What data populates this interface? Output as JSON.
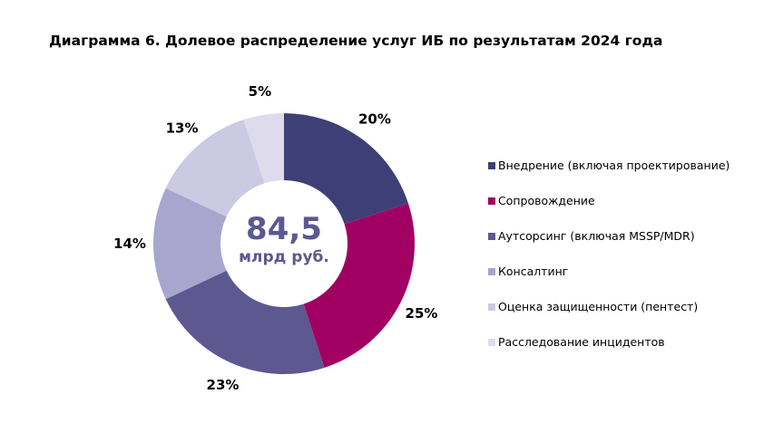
{
  "chart_data": {
    "type": "pie",
    "donut": true,
    "title": "Диаграмма 6. Долевое распределение услуг ИБ по результатам 2024 года",
    "center_value": "84,5",
    "center_unit": "млрд руб.",
    "legend_position": "right",
    "categories": [
      "Внедрение (включая проектирование)",
      "Сопровождение",
      "Аутсорсинг (включая MSSP/MDR)",
      "Консалтинг",
      "Оценка защищенности (пентест)",
      "Расследование инцидентов"
    ],
    "values": [
      20,
      25,
      23,
      14,
      13,
      5
    ],
    "labels": [
      "20%",
      "25%",
      "23%",
      "14%",
      "13%",
      "5%"
    ],
    "colors": [
      "#3f3f77",
      "#a10062",
      "#5d5890",
      "#a8a6ce",
      "#cbcae2",
      "#dddbec"
    ],
    "center_text_color": "#5d5890"
  }
}
